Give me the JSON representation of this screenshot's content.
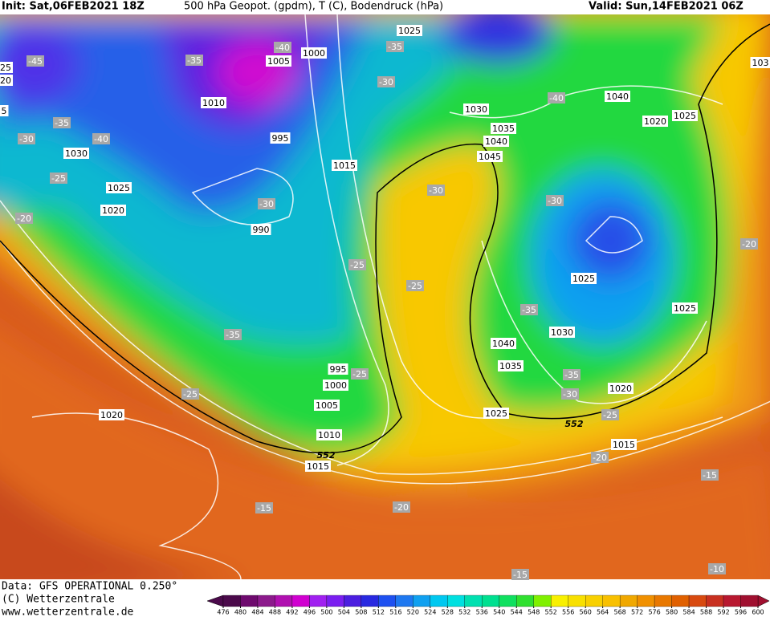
{
  "header": {
    "init": "Init: Sat,06FEB2021 18Z",
    "title": "500 hPa Geopot. (gpdm), T (C), Bodendruck (hPa)",
    "valid": "Valid: Sun,14FEB2021 06Z"
  },
  "footer": {
    "data": "Data: GFS OPERATIONAL 0.250°",
    "copyright": "(C) Wetterzentrale",
    "url": "www.wetterzentrale.de"
  },
  "pressure_labels": [
    "1025",
    "1005",
    "1000",
    "1010",
    "995",
    "1015",
    "990",
    "1030",
    "1035",
    "1040",
    "1045",
    "1040",
    "1020",
    "1025",
    "1030",
    "1025",
    "1020",
    "1025",
    "1025",
    "1030",
    "1040",
    "1035",
    "995",
    "1000",
    "1005",
    "1010",
    "1015",
    "1020",
    "1025",
    "1020",
    "1015",
    "103",
    "25",
    "20",
    "5"
  ],
  "temperature_labels": [
    "-45",
    "-35",
    "-40",
    "-35",
    "-30",
    "-40",
    "-35",
    "-40",
    "-30",
    "-25",
    "-20",
    "-30",
    "-30",
    "-30",
    "-25",
    "-25",
    "-35",
    "-35",
    "-25",
    "-35",
    "-30",
    "-25",
    "-25",
    "-20",
    "-20",
    "-15",
    "-15",
    "-20",
    "-15",
    "-10"
  ],
  "height_labels": [
    "552",
    "552"
  ],
  "colorbar": {
    "ticks": [
      476,
      480,
      484,
      488,
      492,
      496,
      500,
      504,
      508,
      512,
      516,
      520,
      524,
      528,
      532,
      536,
      540,
      544,
      548,
      552,
      556,
      560,
      564,
      568,
      572,
      576,
      580,
      584,
      588,
      592,
      596,
      600
    ],
    "colors": [
      "#4b0a4b",
      "#6e0a6e",
      "#8c1a8c",
      "#b010b0",
      "#d000d0",
      "#a020f0",
      "#7a1ef0",
      "#4b1ee0",
      "#2828e0",
      "#1e50f0",
      "#1e78f0",
      "#10a0f0",
      "#00c8f0",
      "#00e0e0",
      "#00e0b0",
      "#00e090",
      "#10e060",
      "#30e030",
      "#80f000",
      "#f8f000",
      "#f8e000",
      "#f8d000",
      "#f8c000",
      "#f0a800",
      "#f09000",
      "#e87800",
      "#e06000",
      "#d84a10",
      "#c83020",
      "#b81830",
      "#a01030"
    ]
  }
}
